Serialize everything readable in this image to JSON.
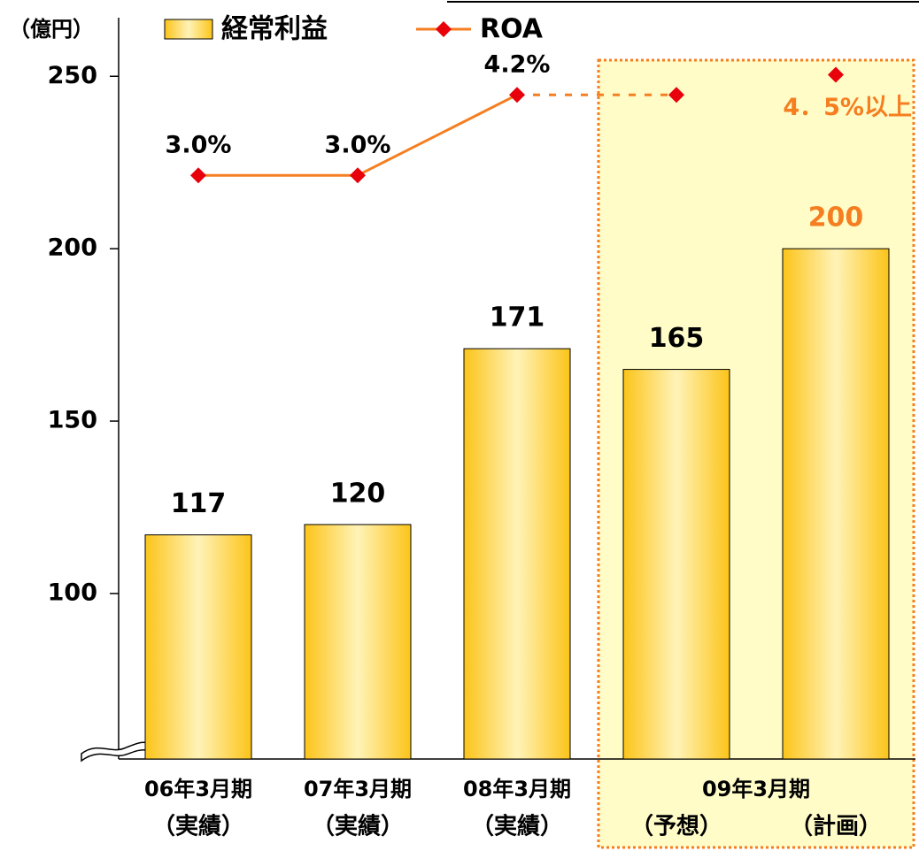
{
  "chart_data": {
    "type": "bar",
    "y_unit": "（億円）",
    "categories": [
      "（実績）",
      "（実績）",
      "（実績）",
      "（予想）",
      "（計画）"
    ],
    "periods": [
      {
        "label": "06年3月期",
        "categories": [
          0
        ]
      },
      {
        "label": "07年3月期",
        "categories": [
          1
        ]
      },
      {
        "label": "08年3月期",
        "categories": [
          2
        ]
      },
      {
        "label": "09年3月期",
        "categories": [
          3,
          4
        ]
      }
    ],
    "ylim": [
      52,
      267
    ],
    "yticks": [
      100,
      150,
      200,
      250
    ],
    "y2lim": [
      -5.7,
      5.35
    ],
    "axis_break": true,
    "highlight": {
      "categories": [
        3,
        4
      ],
      "fill": "#fffcc8",
      "border": "#f57e20"
    },
    "series": [
      {
        "name": "経常利益",
        "type": "bar",
        "color": "#fcc419",
        "values": [
          117,
          120,
          171,
          165,
          200
        ],
        "value_label_colors": [
          "#000000",
          "#000000",
          "#000000",
          "#000000",
          "#f57e20"
        ]
      },
      {
        "name": "ROA",
        "type": "line",
        "axis": "y2",
        "color": "#f57e20",
        "marker_color": "#e8000b",
        "values": [
          3.0,
          3.0,
          4.2,
          4.2,
          4.5
        ],
        "value_labels": [
          "3.0%",
          "3.0%",
          "4.2%",
          null,
          "4．5%以上"
        ],
        "value_label_colors": [
          "#000000",
          "#000000",
          "#000000",
          null,
          "#f57e20"
        ],
        "segment_styles": [
          "solid",
          "solid",
          "dotted",
          "none"
        ]
      }
    ]
  }
}
